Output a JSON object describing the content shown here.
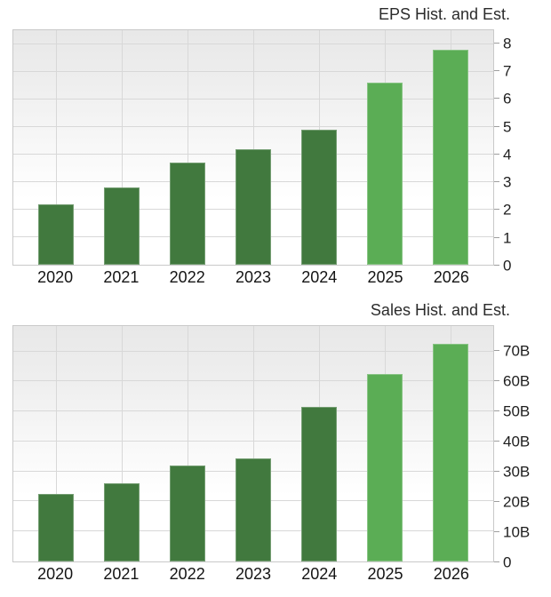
{
  "colors": {
    "historical_bar": "#41793e",
    "estimated_bar": "#5bad55",
    "gridline": "#d8d8d8",
    "plot_border": "#c9c9c9",
    "axis_text": "#1e1e1e",
    "background": "#ffffff"
  },
  "chart_data": [
    {
      "type": "bar",
      "title": "EPS Hist. and Est.",
      "xlabel": "",
      "ylabel": "",
      "categories": [
        "2020",
        "2021",
        "2022",
        "2023",
        "2024",
        "2025",
        "2026"
      ],
      "values": [
        2.2,
        2.8,
        3.7,
        4.2,
        4.9,
        6.6,
        7.8
      ],
      "bar_kinds": [
        "historical",
        "historical",
        "historical",
        "historical",
        "historical",
        "estimated",
        "estimated"
      ],
      "ylim": [
        0,
        8.5
      ],
      "yticks": [
        {
          "value": 0,
          "label": "0"
        },
        {
          "value": 1,
          "label": "1"
        },
        {
          "value": 2,
          "label": "2"
        },
        {
          "value": 3,
          "label": "3"
        },
        {
          "value": 4,
          "label": "4"
        },
        {
          "value": 5,
          "label": "5"
        },
        {
          "value": 6,
          "label": "6"
        },
        {
          "value": 7,
          "label": "7"
        },
        {
          "value": 8,
          "label": "8"
        }
      ],
      "grid": true,
      "legend": false,
      "yaxis_position": "right"
    },
    {
      "type": "bar",
      "title": "Sales Hist. and Est.",
      "xlabel": "",
      "ylabel": "",
      "categories": [
        "2020",
        "2021",
        "2022",
        "2023",
        "2024",
        "2025",
        "2026"
      ],
      "values": [
        22.5,
        26,
        32,
        34.5,
        51.5,
        62.5,
        72.5
      ],
      "unit": "B",
      "bar_kinds": [
        "historical",
        "historical",
        "historical",
        "historical",
        "historical",
        "estimated",
        "estimated"
      ],
      "ylim": [
        0,
        78.5
      ],
      "yticks": [
        {
          "value": 0,
          "label": "0"
        },
        {
          "value": 10,
          "label": "10B"
        },
        {
          "value": 20,
          "label": "20B"
        },
        {
          "value": 30,
          "label": "30B"
        },
        {
          "value": 40,
          "label": "40B"
        },
        {
          "value": 50,
          "label": "50B"
        },
        {
          "value": 60,
          "label": "60B"
        },
        {
          "value": 70,
          "label": "70B"
        }
      ],
      "grid": true,
      "legend": false,
      "yaxis_position": "right"
    }
  ]
}
